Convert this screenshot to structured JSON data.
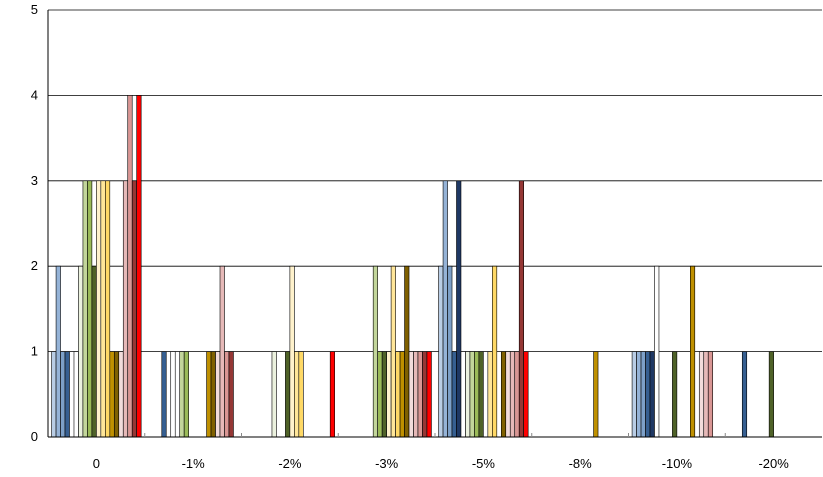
{
  "chart_data": {
    "type": "bar",
    "title": "",
    "xlabel": "",
    "ylabel": "",
    "ylim": [
      0,
      5
    ],
    "y_ticks": [
      "0",
      "1",
      "2",
      "3",
      "4",
      "5"
    ],
    "grid": true,
    "legend": "none",
    "categories": [
      "0",
      "-1%",
      "-2%",
      "-3%",
      "-5%",
      "-8%",
      "-10%",
      "-20%"
    ],
    "series": [
      {
        "color": "#b9cde5",
        "values": [
          1,
          0,
          0,
          0,
          2,
          0,
          1,
          0
        ]
      },
      {
        "color": "#95b3d7",
        "values": [
          2,
          0,
          0,
          0,
          3,
          0,
          1,
          0
        ]
      },
      {
        "color": "#7da0c8",
        "values": [
          1,
          0,
          0,
          0,
          2,
          0,
          1,
          0
        ]
      },
      {
        "color": "#365f91",
        "values": [
          1,
          1,
          0,
          0,
          1,
          0,
          1,
          1
        ]
      },
      {
        "color": "#1f3864",
        "values": [
          0,
          0,
          0,
          0,
          3,
          0,
          1,
          0
        ]
      },
      {
        "color": "#ffffff",
        "values": [
          1,
          1,
          0,
          0,
          1,
          0,
          2,
          0
        ]
      },
      {
        "color": "#ebf1de",
        "values": [
          2,
          0,
          1,
          0,
          1,
          0,
          0,
          0
        ]
      },
      {
        "color": "#c3d69b",
        "values": [
          3,
          1,
          0,
          2,
          1,
          0,
          0,
          0
        ]
      },
      {
        "color": "#9bbb59",
        "values": [
          3,
          1,
          0,
          1,
          1,
          0,
          0,
          0
        ]
      },
      {
        "color": "#4f6228",
        "values": [
          2,
          0,
          1,
          1,
          1,
          0,
          1,
          1
        ]
      },
      {
        "color": "#fff2cc",
        "values": [
          3,
          0,
          2,
          1,
          0,
          0,
          0,
          0
        ]
      },
      {
        "color": "#ffe699",
        "values": [
          3,
          0,
          1,
          2,
          1,
          0,
          0,
          0
        ]
      },
      {
        "color": "#ffd966",
        "values": [
          3,
          0,
          1,
          1,
          2,
          0,
          0,
          0
        ]
      },
      {
        "color": "#bf9000",
        "values": [
          1,
          1,
          0,
          1,
          0,
          1,
          2,
          0
        ]
      },
      {
        "color": "#7f6000",
        "values": [
          1,
          1,
          0,
          2,
          1,
          0,
          0,
          0
        ]
      },
      {
        "color": "#f2dcdb",
        "values": [
          1,
          1,
          0,
          1,
          1,
          0,
          1,
          0
        ]
      },
      {
        "color": "#e6b9b8",
        "values": [
          3,
          2,
          0,
          1,
          1,
          0,
          1,
          0
        ]
      },
      {
        "color": "#d99694",
        "values": [
          4,
          1,
          0,
          1,
          1,
          0,
          1,
          0
        ]
      },
      {
        "color": "#953735",
        "values": [
          3,
          1,
          0,
          1,
          3,
          0,
          0,
          0
        ]
      },
      {
        "color": "#ff0000",
        "values": [
          4,
          0,
          1,
          1,
          1,
          0,
          0,
          0
        ]
      }
    ]
  }
}
